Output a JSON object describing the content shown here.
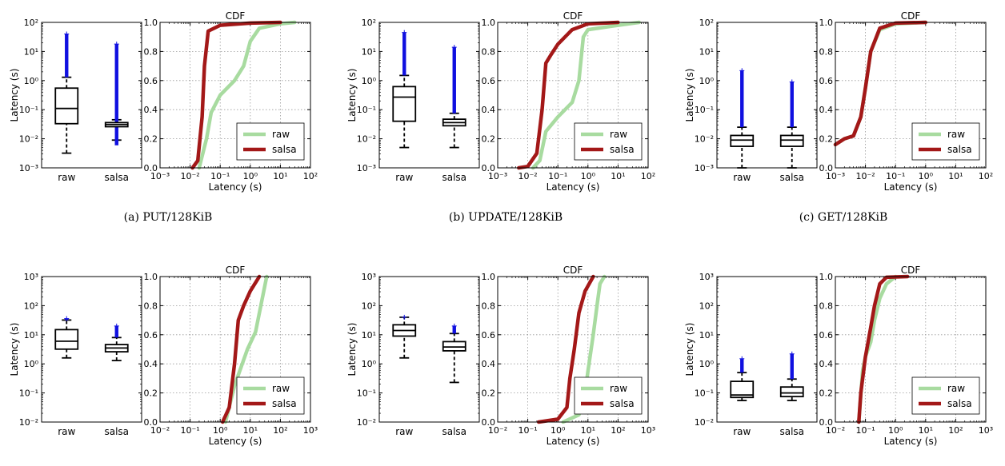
{
  "colors": {
    "raw": "#a8dba0",
    "salsa": "#a31818",
    "fliers": "#1010e0",
    "box": "#000000"
  },
  "chart_data": [
    {
      "caption": "(a) PUT/128KiB",
      "box": {
        "type": "box",
        "ylabel": "Latency (s)",
        "yscale": "log",
        "ylim_exp": [
          -3,
          2
        ],
        "categories": [
          "raw",
          "salsa"
        ],
        "stats": [
          {
            "whislo": 0.0032,
            "q1": 0.033,
            "med": 0.11,
            "q3": 0.55,
            "whishi": 1.3,
            "flier_min": 1.3,
            "flier_max": 40
          },
          {
            "whislo": 0.009,
            "q1": 0.026,
            "med": 0.031,
            "q3": 0.036,
            "whishi": 0.045,
            "flier_min": 0.006,
            "flier_max": 18
          }
        ]
      },
      "cdf": {
        "type": "line",
        "title": "CDF",
        "xlabel": "Latency (s)",
        "xscale": "log",
        "xlim_exp": [
          -3,
          2
        ],
        "ylim": [
          0,
          1
        ],
        "legend": [
          "raw",
          "salsa"
        ],
        "legend_loc": "lower right",
        "series": [
          {
            "name": "raw",
            "points": [
              [
                0.02,
                0
              ],
              [
                0.035,
                0.2
              ],
              [
                0.05,
                0.38
              ],
              [
                0.1,
                0.5
              ],
              [
                0.3,
                0.6
              ],
              [
                0.6,
                0.7
              ],
              [
                1,
                0.87
              ],
              [
                2,
                0.96
              ],
              [
                10,
                0.99
              ],
              [
                30,
                1.0
              ]
            ]
          },
          {
            "name": "salsa",
            "points": [
              [
                0.012,
                0
              ],
              [
                0.018,
                0.05
              ],
              [
                0.025,
                0.35
              ],
              [
                0.03,
                0.7
              ],
              [
                0.04,
                0.94
              ],
              [
                0.1,
                0.98
              ],
              [
                1,
                0.995
              ],
              [
                10,
                1.0
              ]
            ]
          }
        ]
      }
    },
    {
      "caption": "(b) UPDATE/128KiB",
      "box": {
        "type": "box",
        "ylabel": "Latency (s)",
        "yscale": "log",
        "ylim_exp": [
          -3,
          2
        ],
        "categories": [
          "raw",
          "salsa"
        ],
        "stats": [
          {
            "whislo": 0.005,
            "q1": 0.04,
            "med": 0.27,
            "q3": 0.62,
            "whishi": 1.5,
            "flier_min": 1.5,
            "flier_max": 45
          },
          {
            "whislo": 0.005,
            "q1": 0.028,
            "med": 0.036,
            "q3": 0.047,
            "whishi": 0.075,
            "flier_min": 0.075,
            "flier_max": 14
          }
        ]
      },
      "cdf": {
        "type": "line",
        "title": "CDF",
        "xlabel": "Latency (s)",
        "xscale": "log",
        "xlim_exp": [
          -3,
          2
        ],
        "ylim": [
          0,
          1
        ],
        "legend": [
          "raw",
          "salsa"
        ],
        "legend_loc": "lower right",
        "series": [
          {
            "name": "raw",
            "points": [
              [
                0.015,
                0
              ],
              [
                0.025,
                0.05
              ],
              [
                0.04,
                0.25
              ],
              [
                0.1,
                0.35
              ],
              [
                0.3,
                0.45
              ],
              [
                0.5,
                0.6
              ],
              [
                0.7,
                0.9
              ],
              [
                1,
                0.95
              ],
              [
                10,
                0.98
              ],
              [
                50,
                1.0
              ]
            ]
          },
          {
            "name": "salsa",
            "points": [
              [
                0.005,
                0
              ],
              [
                0.01,
                0.01
              ],
              [
                0.02,
                0.1
              ],
              [
                0.03,
                0.4
              ],
              [
                0.04,
                0.72
              ],
              [
                0.06,
                0.78
              ],
              [
                0.1,
                0.85
              ],
              [
                0.3,
                0.95
              ],
              [
                1,
                0.99
              ],
              [
                10,
                1.0
              ]
            ]
          }
        ]
      }
    },
    {
      "caption": "(c) GET/128KiB",
      "box": {
        "type": "box",
        "ylabel": "Latency (s)",
        "yscale": "log",
        "ylim_exp": [
          -3,
          2
        ],
        "categories": [
          "raw",
          "salsa"
        ],
        "stats": [
          {
            "whislo": 0.001,
            "q1": 0.0055,
            "med": 0.009,
            "q3": 0.013,
            "whishi": 0.025,
            "flier_min": 0.025,
            "flier_max": 2.2
          },
          {
            "whislo": 0.001,
            "q1": 0.0055,
            "med": 0.009,
            "q3": 0.013,
            "whishi": 0.025,
            "flier_min": 0.025,
            "flier_max": 0.9
          }
        ]
      },
      "cdf": {
        "type": "line",
        "title": "CDF",
        "xlabel": "Latency (s)",
        "xscale": "log",
        "xlim_exp": [
          -3,
          2
        ],
        "ylim": [
          0,
          1
        ],
        "legend": [
          "raw",
          "salsa"
        ],
        "legend_loc": "lower right",
        "series": [
          {
            "name": "raw",
            "points": [
              [
                0.001,
                0.16
              ],
              [
                0.002,
                0.2
              ],
              [
                0.004,
                0.22
              ],
              [
                0.007,
                0.35
              ],
              [
                0.01,
                0.55
              ],
              [
                0.015,
                0.8
              ],
              [
                0.03,
                0.95
              ],
              [
                0.1,
                0.99
              ],
              [
                1,
                1.0
              ]
            ]
          },
          {
            "name": "salsa",
            "points": [
              [
                0.001,
                0.16
              ],
              [
                0.002,
                0.2
              ],
              [
                0.004,
                0.22
              ],
              [
                0.007,
                0.35
              ],
              [
                0.01,
                0.55
              ],
              [
                0.015,
                0.8
              ],
              [
                0.03,
                0.96
              ],
              [
                0.1,
                0.995
              ],
              [
                1,
                1.0
              ]
            ]
          }
        ]
      }
    },
    {
      "caption": "(d) PUT/10MiB",
      "box": {
        "type": "box",
        "ylabel": "Latency (s)",
        "yscale": "log",
        "ylim_exp": [
          -2,
          3
        ],
        "categories": [
          "raw",
          "salsa"
        ],
        "stats": [
          {
            "whislo": 1.6,
            "q1": 3.2,
            "med": 6.0,
            "q3": 15,
            "whishi": 32,
            "flier_min": 32,
            "flier_max": 36
          },
          {
            "whislo": 1.3,
            "q1": 2.6,
            "med": 3.5,
            "q3": 4.6,
            "whishi": 8.0,
            "flier_min": 8.0,
            "flier_max": 20
          }
        ]
      },
      "cdf": {
        "type": "line",
        "title": "CDF",
        "xlabel": "Latency (s)",
        "xscale": "log",
        "xlim_exp": [
          -2,
          3
        ],
        "ylim": [
          0,
          1
        ],
        "legend": [
          "raw",
          "salsa"
        ],
        "legend_loc": "lower right",
        "series": [
          {
            "name": "raw",
            "points": [
              [
                1.5,
                0
              ],
              [
                3,
                0.25
              ],
              [
                5,
                0.38
              ],
              [
                8,
                0.5
              ],
              [
                15,
                0.62
              ],
              [
                25,
                0.85
              ],
              [
                35,
                1.0
              ]
            ]
          },
          {
            "name": "salsa",
            "points": [
              [
                1.2,
                0
              ],
              [
                2,
                0.1
              ],
              [
                3,
                0.4
              ],
              [
                4,
                0.7
              ],
              [
                6,
                0.8
              ],
              [
                10,
                0.9
              ],
              [
                20,
                1.0
              ]
            ]
          }
        ]
      }
    },
    {
      "caption": "(e) UPDATE/10MiB",
      "box": {
        "type": "box",
        "ylabel": "Latency (s)",
        "yscale": "log",
        "ylim_exp": [
          -2,
          3
        ],
        "categories": [
          "raw",
          "salsa"
        ],
        "stats": [
          {
            "whislo": 1.6,
            "q1": 9.0,
            "med": 14,
            "q3": 22,
            "whishi": 40,
            "flier_min": 40,
            "flier_max": 40
          },
          {
            "whislo": 0.23,
            "q1": 2.8,
            "med": 3.8,
            "q3": 5.8,
            "whishi": 11,
            "flier_min": 11,
            "flier_max": 20
          }
        ]
      },
      "cdf": {
        "type": "line",
        "title": "CDF",
        "xlabel": "Latency (s)",
        "xscale": "log",
        "xlim_exp": [
          -2,
          3
        ],
        "ylim": [
          0,
          1
        ],
        "legend": [
          "raw",
          "salsa"
        ],
        "legend_loc": "lower right",
        "series": [
          {
            "name": "raw",
            "points": [
              [
                1.5,
                0
              ],
              [
                5,
                0.05
              ],
              [
                8,
                0.2
              ],
              [
                10,
                0.35
              ],
              [
                15,
                0.6
              ],
              [
                20,
                0.8
              ],
              [
                25,
                0.95
              ],
              [
                35,
                1.0
              ]
            ]
          },
          {
            "name": "salsa",
            "points": [
              [
                0.23,
                0
              ],
              [
                1,
                0.02
              ],
              [
                2,
                0.1
              ],
              [
                2.5,
                0.3
              ],
              [
                3.5,
                0.5
              ],
              [
                5,
                0.75
              ],
              [
                8,
                0.9
              ],
              [
                15,
                1.0
              ]
            ]
          }
        ]
      }
    },
    {
      "caption": "(f) GET/10MiB",
      "box": {
        "type": "box",
        "ylabel": "Latency (s)",
        "yscale": "log",
        "ylim_exp": [
          -2,
          3
        ],
        "categories": [
          "raw",
          "salsa"
        ],
        "stats": [
          {
            "whislo": 0.055,
            "q1": 0.07,
            "med": 0.085,
            "q3": 0.25,
            "whishi": 0.5,
            "flier_min": 0.5,
            "flier_max": 1.5
          },
          {
            "whislo": 0.055,
            "q1": 0.075,
            "med": 0.1,
            "q3": 0.16,
            "whishi": 0.3,
            "flier_min": 0.3,
            "flier_max": 2.2
          }
        ]
      },
      "cdf": {
        "type": "line",
        "title": "CDF",
        "xlabel": "Latency (s)",
        "xscale": "log",
        "xlim_exp": [
          -2,
          3
        ],
        "ylim": [
          0,
          1
        ],
        "legend": [
          "raw",
          "salsa"
        ],
        "legend_loc": "lower right",
        "series": [
          {
            "name": "raw",
            "points": [
              [
                0.06,
                0
              ],
              [
                0.08,
                0.35
              ],
              [
                0.1,
                0.45
              ],
              [
                0.15,
                0.55
              ],
              [
                0.2,
                0.7
              ],
              [
                0.3,
                0.85
              ],
              [
                0.5,
                0.95
              ],
              [
                1,
                1.0
              ]
            ]
          },
          {
            "name": "salsa",
            "points": [
              [
                0.06,
                0
              ],
              [
                0.07,
                0.2
              ],
              [
                0.1,
                0.45
              ],
              [
                0.15,
                0.65
              ],
              [
                0.2,
                0.8
              ],
              [
                0.3,
                0.95
              ],
              [
                0.5,
                0.995
              ],
              [
                2.5,
                1.0
              ]
            ]
          }
        ]
      }
    }
  ]
}
